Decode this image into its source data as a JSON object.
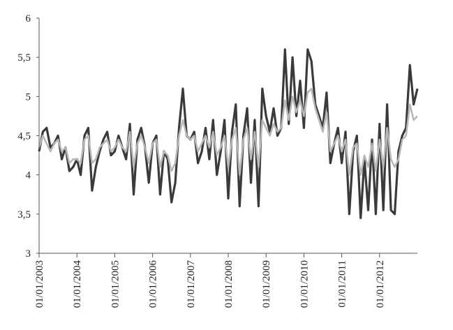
{
  "chart_data": {
    "type": "line",
    "title": "",
    "xlabel": "",
    "ylabel": "",
    "ylim": [
      3,
      6
    ],
    "y_ticks": [
      "3",
      "3,5",
      "4",
      "4,5",
      "5",
      "5,5",
      "6"
    ],
    "x_tick_labels": [
      "01/01/2003",
      "01/01/2004",
      "01/01/2005",
      "01/01/2006",
      "01/01/2007",
      "01/01/2008",
      "01/01/2009",
      "01/01/2010",
      "01/01/2011",
      "01/01/2012"
    ],
    "xlim": [
      2003.0,
      2013.0
    ],
    "grid": false,
    "legend": "none",
    "series": [
      {
        "color": "#3a3a3a",
        "x": [
          2003.0,
          2003.1,
          2003.2,
          2003.3,
          2003.4,
          2003.5,
          2003.6,
          2003.7,
          2003.8,
          2003.9,
          2004.0,
          2004.1,
          2004.2,
          2004.3,
          2004.4,
          2004.5,
          2004.6,
          2004.7,
          2004.8,
          2004.9,
          2005.0,
          2005.1,
          2005.2,
          2005.3,
          2005.4,
          2005.5,
          2005.6,
          2005.7,
          2005.8,
          2005.9,
          2006.0,
          2006.1,
          2006.2,
          2006.3,
          2006.4,
          2006.5,
          2006.6,
          2006.7,
          2006.8,
          2006.9,
          2007.0,
          2007.1,
          2007.2,
          2007.3,
          2007.4,
          2007.5,
          2007.6,
          2007.7,
          2007.8,
          2007.9,
          2008.0,
          2008.1,
          2008.2,
          2008.3,
          2008.4,
          2008.5,
          2008.6,
          2008.7,
          2008.8,
          2008.9,
          2009.0,
          2009.1,
          2009.2,
          2009.3,
          2009.4,
          2009.5,
          2009.6,
          2009.7,
          2009.8,
          2009.9,
          2010.0,
          2010.1,
          2010.2,
          2010.3,
          2010.4,
          2010.5,
          2010.6,
          2010.7,
          2010.8,
          2010.9,
          2011.0,
          2011.1,
          2011.2,
          2011.3,
          2011.4,
          2011.5,
          2011.6,
          2011.7,
          2011.8,
          2011.9,
          2012.0,
          2012.1,
          2012.2,
          2012.3,
          2012.4,
          2012.5,
          2012.6,
          2012.7,
          2012.8,
          2012.9,
          2013.0
        ],
        "values": [
          4.3,
          4.55,
          4.6,
          4.35,
          4.4,
          4.5,
          4.2,
          4.35,
          4.05,
          4.1,
          4.2,
          4.0,
          4.5,
          4.6,
          3.8,
          4.1,
          4.3,
          4.45,
          4.55,
          4.25,
          4.3,
          4.5,
          4.35,
          4.2,
          4.65,
          3.75,
          4.45,
          4.6,
          4.35,
          3.9,
          4.4,
          4.5,
          3.75,
          4.3,
          4.2,
          3.65,
          3.9,
          4.6,
          5.1,
          4.5,
          4.45,
          4.55,
          4.15,
          4.3,
          4.6,
          4.2,
          4.7,
          4.0,
          4.3,
          4.7,
          3.7,
          4.55,
          4.9,
          3.6,
          4.5,
          4.85,
          3.9,
          4.7,
          3.6,
          5.1,
          4.75,
          4.55,
          4.85,
          4.5,
          4.6,
          5.6,
          4.65,
          5.5,
          4.75,
          5.2,
          4.6,
          5.6,
          5.45,
          4.9,
          4.75,
          4.6,
          5.05,
          4.15,
          4.4,
          4.6,
          4.15,
          4.55,
          3.5,
          4.3,
          4.5,
          3.45,
          4.2,
          3.55,
          4.45,
          3.5,
          4.65,
          3.55,
          4.9,
          3.55,
          3.5,
          4.3,
          4.5,
          4.6,
          5.4,
          4.9,
          5.1
        ]
      },
      {
        "color": "#b8b8b8",
        "x": [
          2003.0,
          2003.1,
          2003.2,
          2003.3,
          2003.4,
          2003.5,
          2003.6,
          2003.7,
          2003.8,
          2003.9,
          2004.0,
          2004.1,
          2004.2,
          2004.3,
          2004.4,
          2004.5,
          2004.6,
          2004.7,
          2004.8,
          2004.9,
          2005.0,
          2005.1,
          2005.2,
          2005.3,
          2005.4,
          2005.5,
          2005.6,
          2005.7,
          2005.8,
          2005.9,
          2006.0,
          2006.1,
          2006.2,
          2006.3,
          2006.4,
          2006.5,
          2006.6,
          2006.7,
          2006.8,
          2006.9,
          2007.0,
          2007.1,
          2007.2,
          2007.3,
          2007.4,
          2007.5,
          2007.6,
          2007.7,
          2007.8,
          2007.9,
          2008.0,
          2008.1,
          2008.2,
          2008.3,
          2008.4,
          2008.5,
          2008.6,
          2008.7,
          2008.8,
          2008.9,
          2009.0,
          2009.1,
          2009.2,
          2009.3,
          2009.4,
          2009.5,
          2009.6,
          2009.7,
          2009.8,
          2009.9,
          2010.0,
          2010.1,
          2010.2,
          2010.3,
          2010.4,
          2010.5,
          2010.6,
          2010.7,
          2010.8,
          2010.9,
          2011.0,
          2011.1,
          2011.2,
          2011.3,
          2011.4,
          2011.5,
          2011.6,
          2011.7,
          2011.8,
          2011.9,
          2012.0,
          2012.1,
          2012.2,
          2012.3,
          2012.4,
          2012.5,
          2012.6,
          2012.7,
          2012.8,
          2012.9,
          2013.0
        ],
        "values": [
          4.35,
          4.5,
          4.4,
          4.3,
          4.4,
          4.45,
          4.3,
          4.35,
          4.15,
          4.2,
          4.2,
          4.15,
          4.45,
          4.5,
          4.15,
          4.2,
          4.35,
          4.4,
          4.45,
          4.3,
          4.35,
          4.45,
          4.35,
          4.3,
          4.55,
          4.1,
          4.4,
          4.5,
          4.35,
          4.15,
          4.4,
          4.45,
          4.1,
          4.3,
          4.25,
          4.05,
          4.15,
          4.5,
          4.7,
          4.5,
          4.45,
          4.5,
          4.3,
          4.4,
          4.5,
          4.35,
          4.55,
          4.25,
          4.35,
          4.5,
          4.1,
          4.45,
          4.6,
          4.0,
          4.45,
          4.6,
          4.2,
          4.55,
          4.1,
          4.7,
          4.6,
          4.5,
          4.65,
          4.55,
          4.6,
          4.95,
          4.7,
          5.0,
          4.8,
          4.95,
          4.75,
          5.05,
          5.1,
          4.85,
          4.7,
          4.55,
          4.8,
          4.3,
          4.4,
          4.5,
          4.3,
          4.45,
          4.0,
          4.35,
          4.4,
          4.0,
          4.25,
          4.1,
          4.4,
          4.05,
          4.45,
          4.1,
          4.6,
          4.2,
          4.1,
          4.2,
          4.45,
          4.5,
          4.9,
          4.7,
          4.75
        ]
      }
    ]
  }
}
